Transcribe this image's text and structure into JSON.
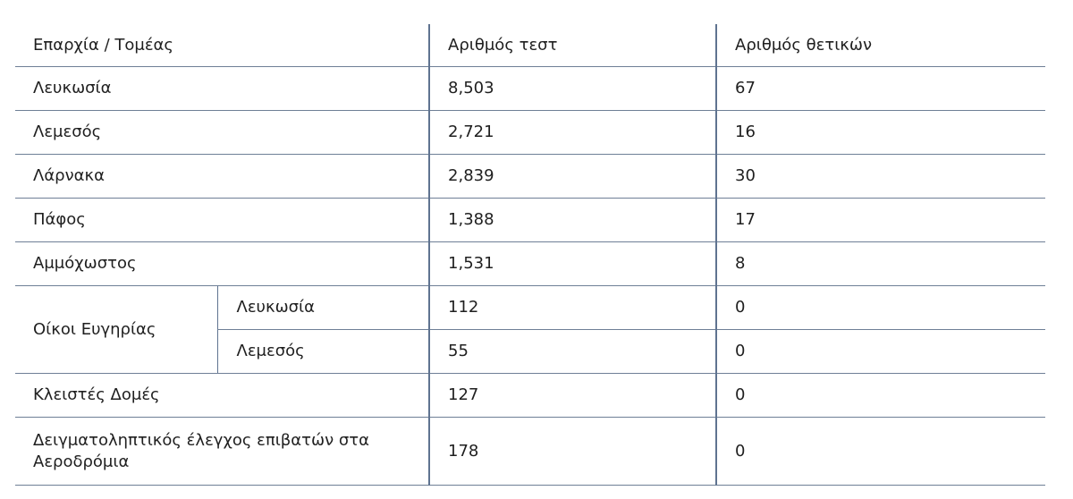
{
  "table": {
    "headers": {
      "region": "Επαρχία / Τομέας",
      "tests": "Αριθμός τεστ",
      "positives": "Αριθμός θετικών"
    },
    "rows": [
      {
        "region": "Λευκωσία",
        "tests": "8,503",
        "positives": "67"
      },
      {
        "region": "Λεμεσός",
        "tests": "2,721",
        "positives": "16"
      },
      {
        "region": "Λάρνακα",
        "tests": "2,839",
        "positives": "30"
      },
      {
        "region": "Πάφος",
        "tests": "1,388",
        "positives": "17"
      },
      {
        "region": "Αμμόχωστος",
        "tests": "1,531",
        "positives": "8"
      }
    ],
    "care_homes": {
      "label": "Οίκοι Ευγηρίας",
      "rows": [
        {
          "sub": "Λευκωσία",
          "tests": "112",
          "positives": "0"
        },
        {
          "sub": "Λεμεσός",
          "tests": "55",
          "positives": "0"
        }
      ]
    },
    "closed_structures": {
      "region": "Κλειστές Δομές",
      "tests": "127",
      "positives": "0"
    },
    "airports": {
      "region": "Δειγματοληπτικός έλεγχος επιβατών στα Αεροδρόμια",
      "tests": "178",
      "positives": "0"
    }
  }
}
